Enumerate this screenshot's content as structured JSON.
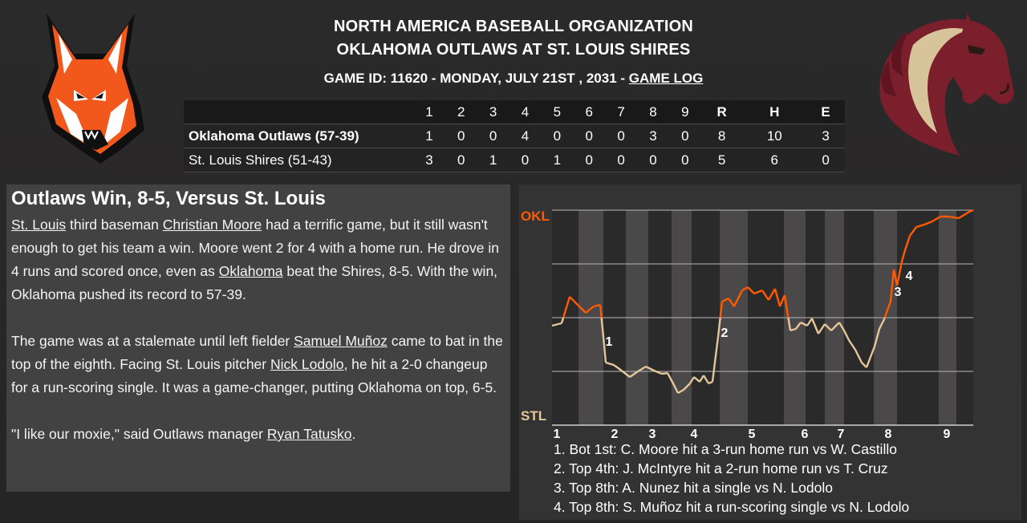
{
  "header": {
    "org": "NORTH AMERICA BASEBALL ORGANIZATION",
    "matchup": "OKLAHOMA OUTLAWS AT ST. LOUIS SHIRES",
    "game_info": "GAME ID: 11620 - MONDAY, JULY 21ST , 2031 - ",
    "game_log_link": "GAME LOG"
  },
  "logos": {
    "left": "fox-logo",
    "right": "horse-logo"
  },
  "colors": {
    "away_line": "#ff5a00",
    "home_line": "#e3c79a",
    "background": "#2b2a2a"
  },
  "linescore": {
    "innings": [
      "1",
      "2",
      "3",
      "4",
      "5",
      "6",
      "7",
      "8",
      "9"
    ],
    "totals_headers": [
      "R",
      "H",
      "E"
    ],
    "teams": [
      {
        "name": "Oklahoma Outlaws (57-39)",
        "innings": [
          "1",
          "0",
          "0",
          "4",
          "0",
          "0",
          "0",
          "3",
          "0"
        ],
        "totals": [
          "8",
          "10",
          "3"
        ]
      },
      {
        "name": "St. Louis Shires (51-43)",
        "innings": [
          "3",
          "0",
          "1",
          "0",
          "1",
          "0",
          "0",
          "0",
          "0"
        ],
        "totals": [
          "5",
          "6",
          "0"
        ]
      }
    ]
  },
  "story": {
    "headline": "Outlaws Win, 8-5, Versus St. Louis",
    "p1": {
      "t1": "St. Louis",
      "t2": " third baseman ",
      "t3": "Christian Moore",
      "t4": " had a terrific game, but it still wasn't enough to get his team a win. Moore went 2 for 4 with a home run. He drove in 4 runs and scored once, even as ",
      "t5": "Oklahoma",
      "t6": " beat the Shires, 8-5. With the win, Oklahoma pushed its record to 57-39."
    },
    "p2": {
      "t1": "The game was at a stalemate until left fielder ",
      "t2": "Samuel Muñoz",
      "t3": " came to bat in the top of the eighth. Facing St. Louis pitcher ",
      "t4": "Nick Lodolo",
      "t5": ", he hit a 2-0 changeup for a run-scoring single. It was a game-changer, putting Oklahoma on top, 6-5."
    },
    "p3": {
      "t1": "\"I like our moxie,\" said Outlaws manager ",
      "t2": "Ryan Tatusko",
      "t3": "."
    }
  },
  "win_probability": {
    "top_label": "OKL",
    "bottom_label": "STL",
    "innings": [
      "1",
      "2",
      "3",
      "4",
      "5",
      "6",
      "7",
      "8",
      "9"
    ],
    "markers": [
      "1",
      "2",
      "3",
      "4"
    ],
    "events": [
      "1. Bot 1st: C. Moore hit a 3-run home run vs W. Castillo",
      "2. Top 4th: J. McIntyre hit a 2-run home run vs T. Cruz",
      "3. Top 8th: A. Nunez hit a single vs N. Lodolo",
      "4. Top 8th: S. Muñoz hit a run-scoring single vs N. Lodolo"
    ]
  }
}
